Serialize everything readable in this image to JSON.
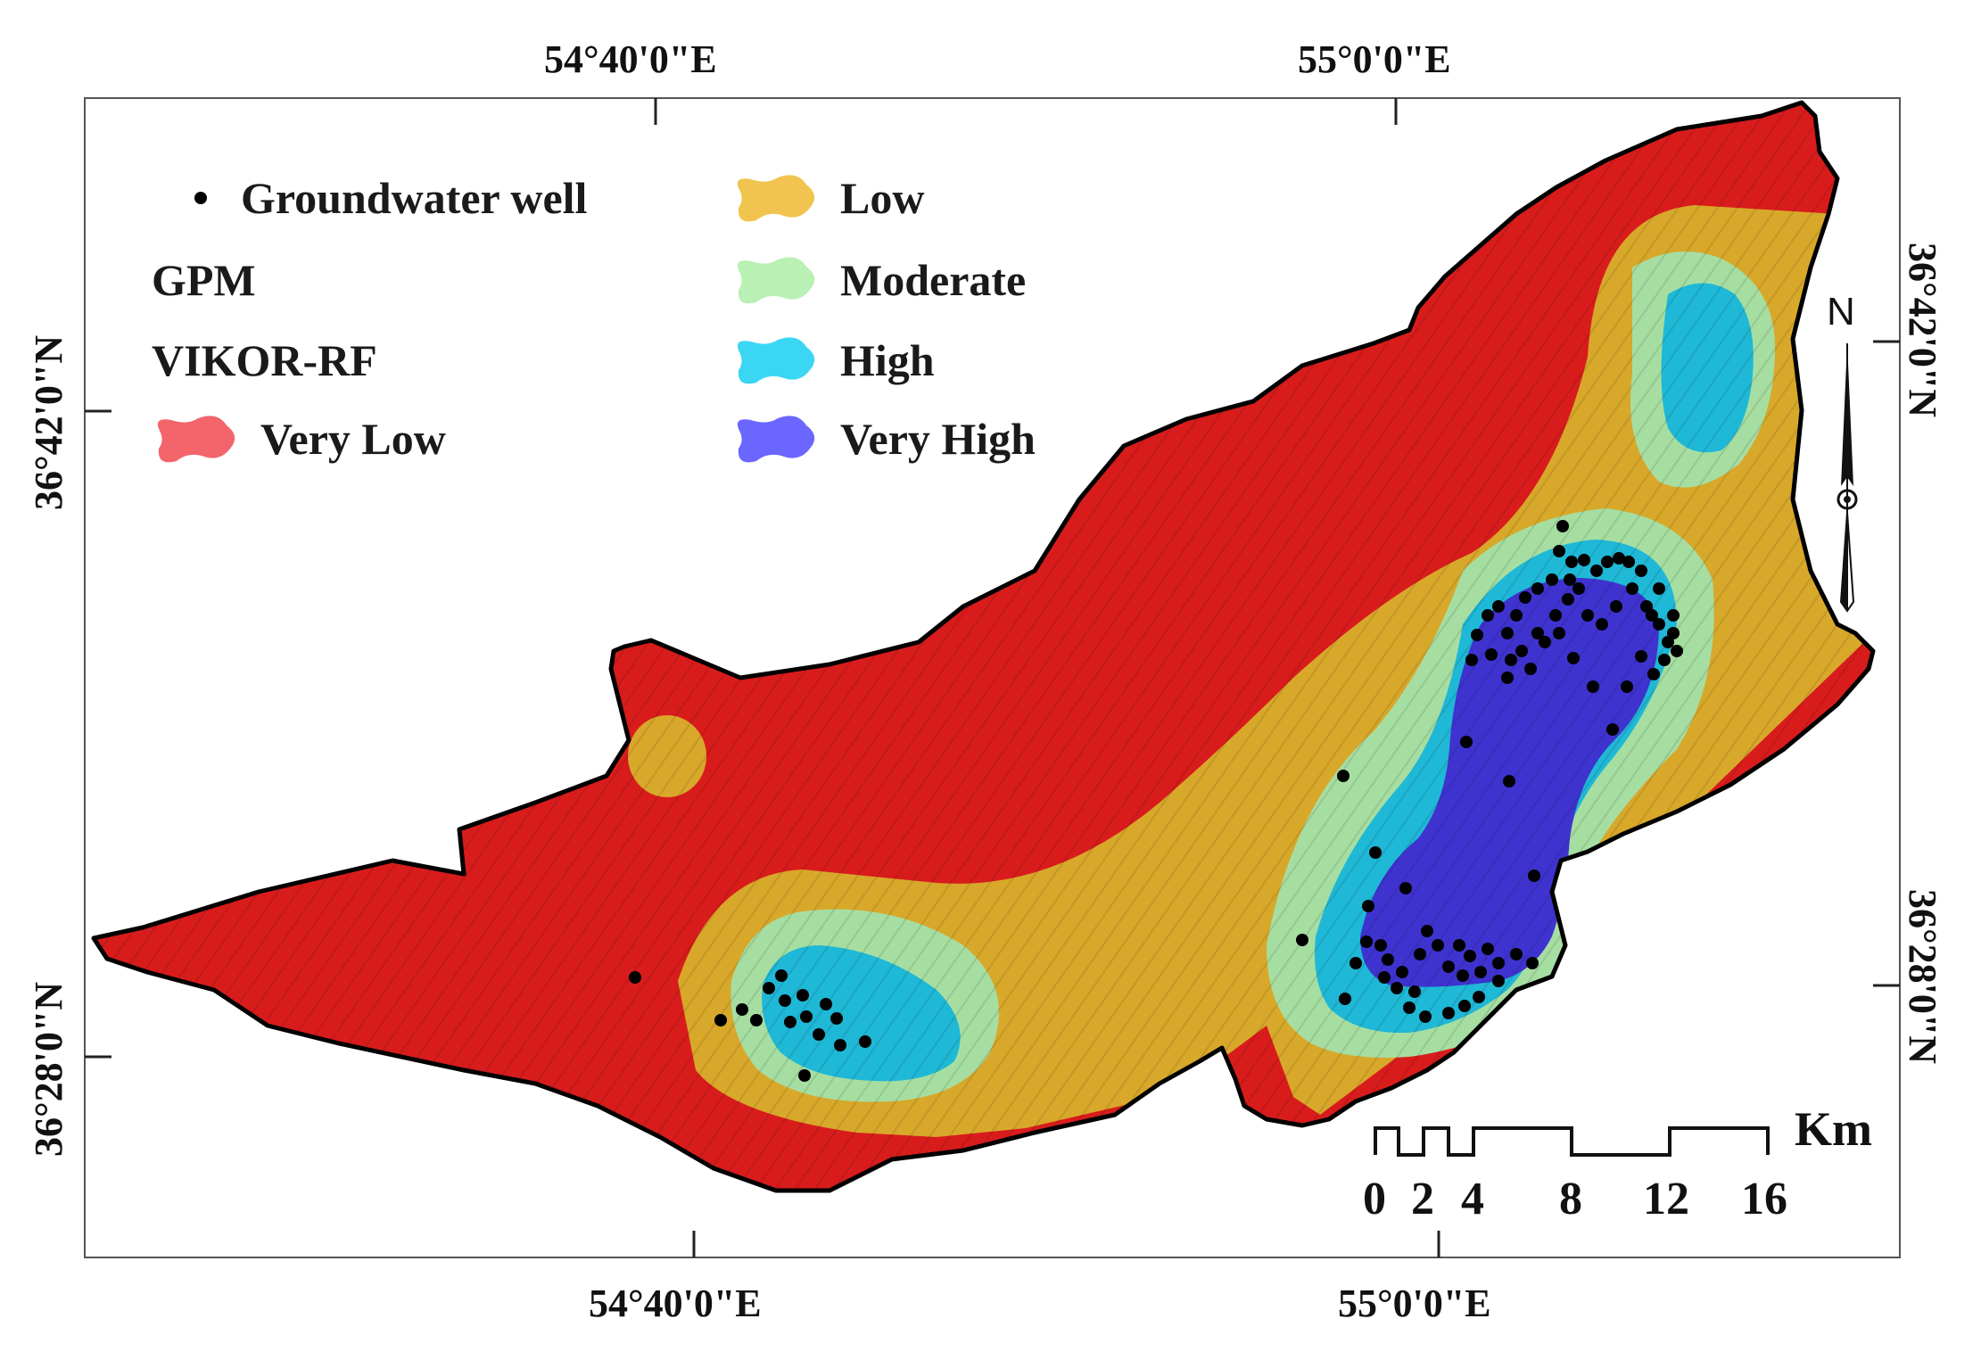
{
  "frame": {
    "top_labels": [
      "54°40'0\"E",
      "55°0'0\"E"
    ],
    "bottom_labels": [
      "54°40'0\"E",
      "55°0'0\"E"
    ],
    "left_labels": [
      "36°42'0\"N",
      "36°28'0\"N"
    ],
    "right_labels": [
      "36°42'0\"N",
      "36°28'0\"N"
    ]
  },
  "legend": {
    "well_label": "Groundwater well",
    "line1": "GPM",
    "line2": "VIKOR-RF",
    "classes": [
      {
        "label": "Very Low",
        "color": "#f4646b"
      },
      {
        "label": "Low",
        "color": "#f0c44e"
      },
      {
        "label": "Moderate",
        "color": "#b9f0b4"
      },
      {
        "label": "High",
        "color": "#3ad6f4"
      },
      {
        "label": "Very High",
        "color": "#6a66ff"
      }
    ]
  },
  "map_colors": {
    "very_low": "#d81c1c",
    "low": "#d8a82a",
    "moderate": "#a6dea2",
    "high": "#1fb8d6",
    "very_high": "#3e33cf",
    "well": "#000000"
  },
  "scale_bar": {
    "unit": "Km",
    "ticks": [
      "0",
      "2",
      "4",
      "8",
      "12",
      "16"
    ]
  },
  "north_arrow": {
    "label": "N"
  }
}
